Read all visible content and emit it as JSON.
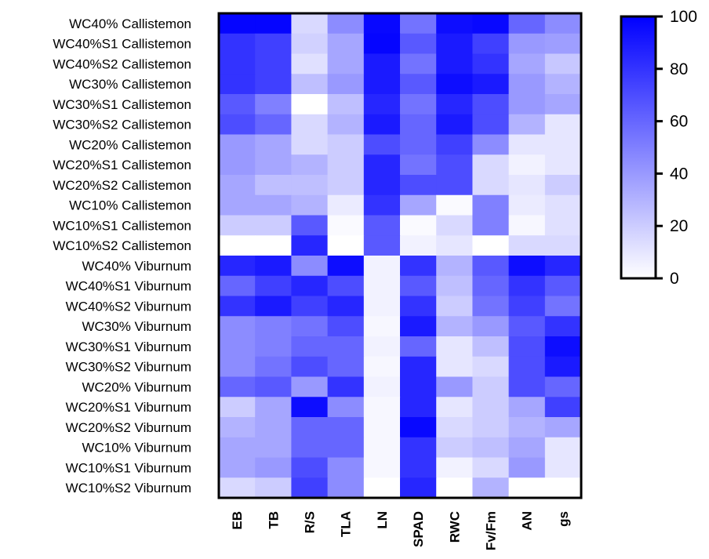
{
  "chart_data": {
    "type": "heatmap",
    "rows": [
      "WC40% Callistemon",
      "WC40%S1 Callistemon",
      "WC40%S2 Callistemon",
      "WC30% Callistemon",
      "WC30%S1 Callistemon",
      "WC30%S2 Callistemon",
      "WC20% Callistemon",
      "WC20%S1 Callistemon",
      "WC20%S2 Callistemon",
      "WC10% Callistemon",
      "WC10%S1 Callistemon",
      "WC10%S2 Callistemon",
      "WC40% Viburnum",
      "WC40%S1 Viburnum",
      "WC40%S2 Viburnum",
      "WC30% Viburnum",
      "WC30%S1 Viburnum",
      "WC30%S2 Viburnum",
      "WC20% Viburnum",
      "WC20%S1 Viburnum",
      "WC20%S2 Viburnum",
      "WC10% Viburnum",
      "WC10%S1 Viburnum",
      "WC10%S2 Viburnum"
    ],
    "columns": [
      "EB",
      "TB",
      "R/S",
      "TLA",
      "LN",
      "SPAD",
      "RWC",
      "Fv/Fm",
      "AN",
      "gs"
    ],
    "values": [
      [
        98,
        98,
        15,
        45,
        97,
        55,
        95,
        97,
        60,
        45
      ],
      [
        80,
        75,
        18,
        35,
        98,
        65,
        90,
        75,
        40,
        38
      ],
      [
        80,
        75,
        12,
        35,
        90,
        55,
        90,
        80,
        35,
        22
      ],
      [
        80,
        75,
        25,
        40,
        90,
        65,
        95,
        90,
        40,
        30
      ],
      [
        65,
        50,
        0,
        25,
        85,
        55,
        85,
        70,
        40,
        35
      ],
      [
        70,
        60,
        15,
        30,
        90,
        60,
        90,
        70,
        30,
        10
      ],
      [
        40,
        35,
        15,
        20,
        70,
        60,
        75,
        45,
        10,
        10
      ],
      [
        40,
        35,
        30,
        20,
        85,
        55,
        70,
        15,
        5,
        10
      ],
      [
        35,
        25,
        25,
        20,
        85,
        70,
        70,
        15,
        10,
        20
      ],
      [
        35,
        35,
        30,
        8,
        80,
        35,
        2,
        50,
        8,
        12
      ],
      [
        20,
        20,
        65,
        2,
        65,
        2,
        15,
        50,
        3,
        12
      ],
      [
        0,
        0,
        85,
        0,
        65,
        5,
        10,
        0,
        15,
        15
      ],
      [
        85,
        90,
        45,
        95,
        5,
        80,
        30,
        65,
        95,
        85
      ],
      [
        60,
        75,
        85,
        70,
        5,
        65,
        25,
        60,
        80,
        65
      ],
      [
        80,
        90,
        75,
        85,
        5,
        80,
        20,
        55,
        75,
        55
      ],
      [
        45,
        50,
        55,
        70,
        3,
        90,
        30,
        40,
        65,
        80
      ],
      [
        45,
        50,
        60,
        60,
        5,
        60,
        10,
        25,
        70,
        95
      ],
      [
        45,
        55,
        70,
        60,
        3,
        85,
        10,
        15,
        70,
        90
      ],
      [
        60,
        65,
        40,
        80,
        5,
        85,
        40,
        20,
        70,
        60
      ],
      [
        20,
        35,
        95,
        45,
        3,
        85,
        10,
        20,
        35,
        75
      ],
      [
        30,
        35,
        60,
        60,
        3,
        97,
        15,
        20,
        30,
        35
      ],
      [
        35,
        35,
        60,
        60,
        3,
        80,
        20,
        25,
        35,
        10
      ],
      [
        35,
        40,
        70,
        45,
        3,
        80,
        5,
        15,
        40,
        10
      ],
      [
        15,
        20,
        75,
        45,
        0,
        85,
        0,
        30,
        0,
        0
      ]
    ],
    "colorbar": {
      "range": [
        0,
        100
      ],
      "ticks": [
        "0",
        "20",
        "40",
        "60",
        "80",
        "100"
      ],
      "low_color": "#ffffff",
      "high_color": "#0000ff"
    }
  }
}
